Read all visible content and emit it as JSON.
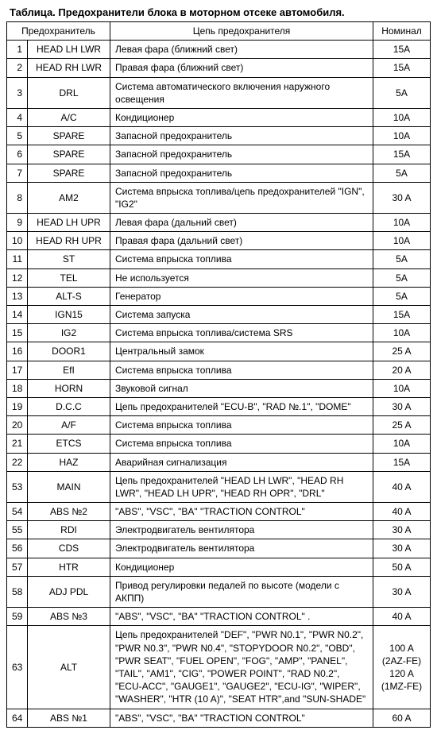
{
  "title": "Таблица. Предохранители блока в моторном отсеке автомобиля.",
  "headers": {
    "fuse_group": "Предохранитель",
    "circuit": "Цепь предохранителя",
    "nominal": "Номинал"
  },
  "columns": {
    "num_width": 26,
    "fuse_width": 104,
    "nominal_width": 72
  },
  "rows": [
    {
      "num": "1",
      "fuse": "HEAD LH LWR",
      "circuit": "Левая фара (ближний свет)",
      "nominal": "15A"
    },
    {
      "num": "2",
      "fuse": "HEAD RH LWR",
      "circuit": "Правая фара (ближний свет)",
      "nominal": "15A"
    },
    {
      "num": "3",
      "fuse": "DRL",
      "circuit": "Система автоматического включения наружного освещения",
      "nominal": "5A"
    },
    {
      "num": "4",
      "fuse": "A/C",
      "circuit": "Кондиционер",
      "nominal": "10A"
    },
    {
      "num": "5",
      "fuse": "SPARE",
      "circuit": "Запасной предохранитель",
      "nominal": "10A"
    },
    {
      "num": "6",
      "fuse": "SPARE",
      "circuit": "Запасной предохранитель",
      "nominal": "15A"
    },
    {
      "num": "7",
      "fuse": "SPARE",
      "circuit": "Запасной предохранитель",
      "nominal": "5A"
    },
    {
      "num": "8",
      "fuse": "AM2",
      "circuit": "Система впрыска топлива/цепь предохранителей \"IGN\", \"IG2\"",
      "nominal": "30 A"
    },
    {
      "num": "9",
      "fuse": "HEAD LH UPR",
      "circuit": "Левая фара (дальний свет)",
      "nominal": "10A"
    },
    {
      "num": "10",
      "fuse": "HEAD RH UPR",
      "circuit": "Правая фара (дальний свет)",
      "nominal": "10A"
    },
    {
      "num": "11",
      "fuse": "ST",
      "circuit": "Система впрыска топлива",
      "nominal": "5A"
    },
    {
      "num": "12",
      "fuse": "TEL",
      "circuit": "Не используется",
      "nominal": "5A"
    },
    {
      "num": "13",
      "fuse": "ALT-S",
      "circuit": "Генератор",
      "nominal": "5A"
    },
    {
      "num": "14",
      "fuse": "IGN15",
      "circuit": "Система запуска",
      "nominal": "15A"
    },
    {
      "num": "15",
      "fuse": "IG2",
      "circuit": "Система впрыска топлива/система SRS",
      "nominal": "10A"
    },
    {
      "num": "16",
      "fuse": "DOOR1",
      "circuit": "Центральный замок",
      "nominal": "25 A"
    },
    {
      "num": "17",
      "fuse": "EfI",
      "circuit": "Система впрыска топлива",
      "nominal": "20 A"
    },
    {
      "num": "18",
      "fuse": "HORN",
      "circuit": "Звуковой сигнал",
      "nominal": "10A"
    },
    {
      "num": "19",
      "fuse": "D.C.C",
      "circuit": "Цепь предохранителей \"ECU-B\", \"RAD №.1\", \"DOME\"",
      "nominal": "30 A"
    },
    {
      "num": "20",
      "fuse": "A/F",
      "circuit": "Система впрыска топлива",
      "nominal": "25 A"
    },
    {
      "num": "21",
      "fuse": "ETCS",
      "circuit": "Система впрыска топлива",
      "nominal": "10A"
    },
    {
      "num": "22",
      "fuse": "HAZ",
      "circuit": "Аварийная сигнализация",
      "nominal": "15A"
    },
    {
      "num": "53",
      "fuse": "MAIN",
      "circuit": "Цепь предохранителей \"HEAD LH LWR\", \"HEAD RH LWR\", \"HEAD LH UPR\", \"HEAD RH OPR\", \"DRL\"",
      "nominal": "40 A"
    },
    {
      "num": "54",
      "fuse": "ABS №2",
      "circuit": "\"ABS\", \"VSC\", \"BA\" \"TRACTION CONTROL\"",
      "nominal": "40 A"
    },
    {
      "num": "55",
      "fuse": "RDI",
      "circuit": "Электродвигатель вентилятора",
      "nominal": "30 A"
    },
    {
      "num": "56",
      "fuse": "CDS",
      "circuit": "Электродвигатель вентилятора",
      "nominal": "30 A"
    },
    {
      "num": "57",
      "fuse": "HTR",
      "circuit": "Кондиционер",
      "nominal": "50 A"
    },
    {
      "num": "58",
      "fuse": "ADJ PDL",
      "circuit": "Привод регулировки педалей по высоте (модели с АКПП)",
      "nominal": "30 A"
    },
    {
      "num": "59",
      "fuse": "ABS №3",
      "circuit": "\"ABS\", \"VSC\", \"BA\" \"TRACTION CONTROL\"  .",
      "nominal": "40 A"
    },
    {
      "num": "63",
      "fuse": "ALT",
      "circuit": "Цепь предохранителей \"DEF\", \"PWR N0.1\", \"PWR N0.2\", \"PWR N0.3\", \"PWR N0.4\", \"STOPYDOOR N0.2\", \"OBD\", \"PWR SEAT\", \"FUEL OPEN\", \"FOG\", \"AMP\", \"PANEL\", \"TAIL\", \"AM1\", \"CIG\", \"POWER POINT\", \"RAD N0.2\", \"ECU-ACC\", \"GAUGE1\", \"GAUGE2\", \"ECU-IG\", \"WIPER\", \"WASHER\", \"HTR (10 A)\", \"SEAT HTR\",and \"SUN-SHADE\"",
      "nominal": "100 A\n(2AZ-FE)\n120 A\n(1MZ-FE)"
    },
    {
      "num": "64",
      "fuse": "ABS №1",
      "circuit": "\"ABS\", \"VSC\", \"BA\" \"TRACTION CONTROL\"",
      "nominal": "60 A"
    }
  ],
  "styling": {
    "border_color": "#000000",
    "background_color": "#ffffff",
    "font_family": "Arial, sans-serif",
    "base_font_size": 12,
    "title_font_size": 13,
    "title_font_weight": "bold"
  }
}
